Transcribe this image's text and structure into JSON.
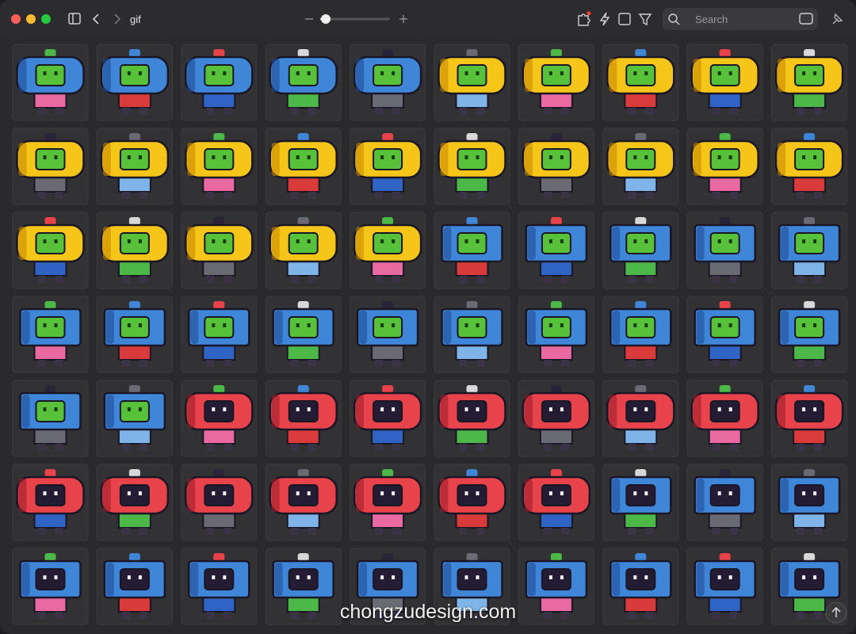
{
  "toolbar": {
    "folder_title": "gif",
    "search_placeholder": "Search"
  },
  "watermark": "chongzudesign.com"
}
